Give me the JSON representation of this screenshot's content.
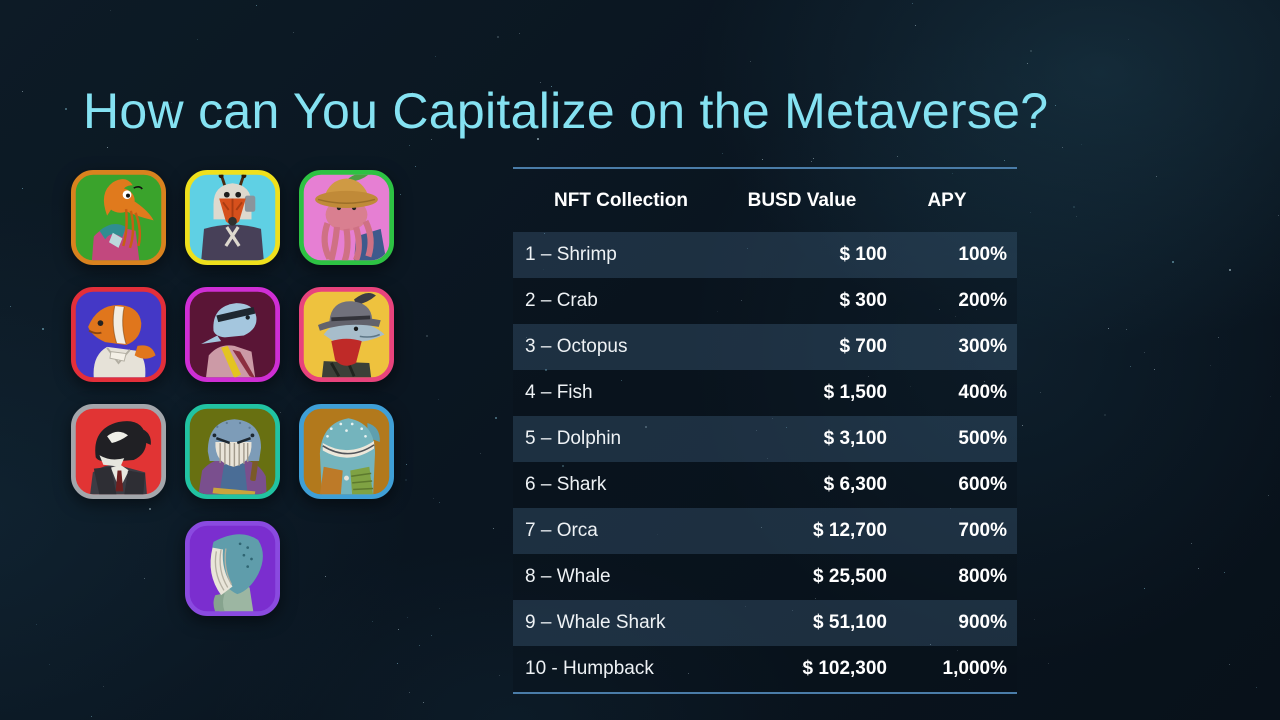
{
  "title": "How can You Capitalize on the Metaverse?",
  "colors": {
    "title_text": "#85e2f2",
    "table_line": "#4a7ca8",
    "header_text": "#ffffff",
    "row_text": "#eef2f5",
    "row_odd_bg": "rgba(58,86,112,0.42)",
    "row_even_bg": "rgba(8,16,26,0.35)"
  },
  "table": {
    "headers": [
      "NFT Collection",
      "BUSD Value",
      "APY"
    ],
    "rows": [
      [
        "1 – Shrimp",
        "$ 100",
        "100%"
      ],
      [
        "2 – Crab",
        "$ 300",
        "200%"
      ],
      [
        "3 – Octopus",
        "$ 700",
        "300%"
      ],
      [
        "4 – Fish",
        "$ 1,500",
        "400%"
      ],
      [
        "5 – Dolphin",
        "$ 3,100",
        "500%"
      ],
      [
        "6 – Shark",
        "$ 6,300",
        "600%"
      ],
      [
        "7 – Orca",
        "$ 12,700",
        "700%"
      ],
      [
        "8 – Whale",
        "$ 25,500",
        "800%"
      ],
      [
        "9 – Whale Shark",
        "$ 51,100",
        "900%"
      ],
      [
        "10 - Humpback",
        "$ 102,300",
        "1,000%"
      ]
    ]
  },
  "nft": {
    "items": [
      {
        "name": "shrimp",
        "bg": "#3aa32c",
        "border": "#d9821e"
      },
      {
        "name": "crab",
        "bg": "#5fd0e4",
        "border": "#efe01c"
      },
      {
        "name": "octopus",
        "bg": "#e67fd3",
        "border": "#2dc243"
      },
      {
        "name": "fish",
        "bg": "#4438c6",
        "border": "#e32f3a"
      },
      {
        "name": "dolphin",
        "bg": "#5a1536",
        "border": "#cf2ed4"
      },
      {
        "name": "shark",
        "bg": "#eec23e",
        "border": "#e8437c"
      },
      {
        "name": "orca",
        "bg": "#e13434",
        "border": "#a3a6ab"
      },
      {
        "name": "whale",
        "bg": "#687011",
        "border": "#21c3a2"
      },
      {
        "name": "whale-shark",
        "bg": "#b2791c",
        "border": "#3f9fd6"
      },
      {
        "name": "humpback",
        "bg": "#7b2ecf",
        "border": "#8a4ae0"
      }
    ]
  }
}
